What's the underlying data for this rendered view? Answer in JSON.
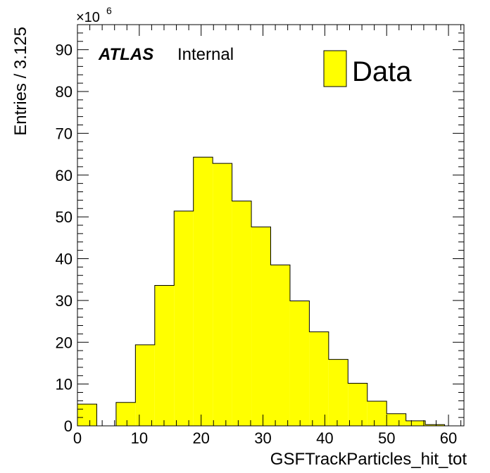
{
  "chart_data": {
    "type": "bar",
    "xlabel": "GSFTrackParticles_hit_tot",
    "ylabel": "Entries / 3.125",
    "y_multiplier_base": "×10",
    "y_multiplier_exp": "6",
    "xlim": [
      0,
      62.5
    ],
    "ylim": [
      0,
      96
    ],
    "x_ticks": [
      0,
      10,
      20,
      30,
      40,
      50,
      60
    ],
    "y_ticks": [
      0,
      10,
      20,
      30,
      40,
      50,
      60,
      70,
      80,
      90
    ],
    "bin_width": 3.125,
    "bin_edges": [
      0,
      3.125,
      6.25,
      9.375,
      12.5,
      15.625,
      18.75,
      21.875,
      25,
      28.125,
      31.25,
      34.375,
      37.5,
      40.625,
      43.75,
      46.875,
      50,
      53.125,
      56.25,
      59.375,
      62.5
    ],
    "values": [
      5.2,
      0,
      5.6,
      19.4,
      33.6,
      51.4,
      64.3,
      62.8,
      53.8,
      47.6,
      38.5,
      29.9,
      22.5,
      15.9,
      10.2,
      5.9,
      2.9,
      1.2,
      0.3,
      0
    ],
    "fill_color": "#ffff00",
    "line_color": "#000000",
    "legend": [
      {
        "name": "Data",
        "color": "#ffff00"
      }
    ],
    "legend_position": "top-right",
    "grid": false
  },
  "labels": {
    "atlas": "ATLAS",
    "internal": "Internal"
  }
}
